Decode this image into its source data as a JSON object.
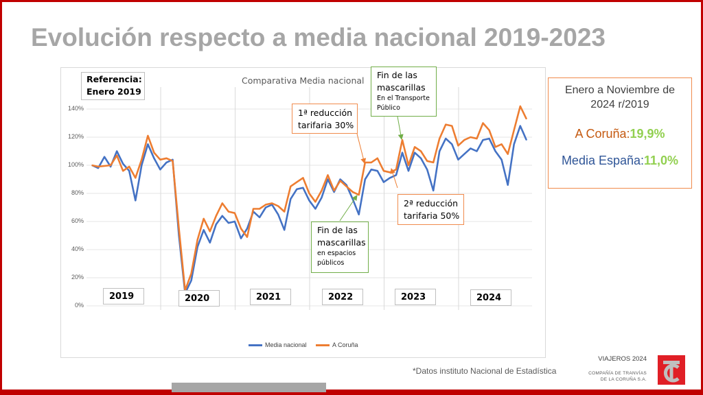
{
  "slide": {
    "title": "Evolución respecto a media nacional 2019-2023",
    "note": "*Datos instituto Nacional de Estadística",
    "footer": {
      "report": "VIAJEROS 2024",
      "company_line1": "COMPAÑÍA DE TRANVÍAS",
      "company_line2": "DE LA CORUÑA S.A.",
      "logo_text": "TC"
    }
  },
  "reference_box": {
    "line1": "Referencia:",
    "line2": "Enero 2019"
  },
  "summary": {
    "period": "Enero a Noviembre de 2024 r/2019",
    "coruna_label": "A Coruña:",
    "coruna_value": "19,9%",
    "spain_label": "Media España:",
    "spain_value": "11,0%"
  },
  "annotations": {
    "first_reduction": {
      "line1": "1ª reducción",
      "line2": "tarifaria 30%"
    },
    "second_reduction": {
      "line1": "2ª reducción",
      "line2": "tarifaria 50%"
    },
    "masks_public_spaces": {
      "line1": "Fin de las",
      "line2": "mascarillas",
      "line3": "en espacios",
      "line4": "públicos"
    },
    "masks_transport": {
      "line1": "Fin de las",
      "line2": "mascarillas",
      "line3": "En el Transporte",
      "line4": "Público"
    }
  },
  "colors": {
    "media_nacional": "#4472c4",
    "a_coruna": "#ed7d31",
    "highlight_value": "#92d050",
    "coruna_text": "#c55a11",
    "spain_text": "#2f5597"
  },
  "chart_data": {
    "type": "line",
    "title": "Comparativa Media nacional",
    "xlabel": "",
    "ylabel": "",
    "ylim": [
      0,
      140
    ],
    "yticks": [
      "0%",
      "20%",
      "40%",
      "60%",
      "80%",
      "100%",
      "120%",
      "140%"
    ],
    "year_labels": [
      "2019",
      "2020",
      "2021",
      "2022",
      "2023",
      "2024"
    ],
    "x_start": "Enero 2019",
    "x_end": "Noviembre 2024",
    "grid": true,
    "legend_position": "bottom",
    "series": [
      {
        "name": "Media nacional",
        "values": [
          100,
          98,
          106,
          99,
          110,
          101,
          96,
          75,
          100,
          115,
          105,
          97,
          102,
          104,
          50,
          9,
          18,
          42,
          54,
          45,
          58,
          64,
          59,
          60,
          48,
          55,
          67,
          63,
          70,
          72,
          65,
          54,
          76,
          83,
          84,
          75,
          69,
          77,
          90,
          81,
          90,
          86,
          76,
          65,
          90,
          97,
          96,
          88,
          91,
          93,
          109,
          96,
          109,
          105,
          97,
          82,
          110,
          119,
          115,
          104,
          108,
          112,
          110,
          118,
          119,
          110,
          104,
          86,
          115,
          128,
          118
        ]
      },
      {
        "name": "A Coruña",
        "values": [
          100,
          99,
          99.5,
          100,
          107,
          96,
          99,
          91,
          104,
          121,
          109,
          104,
          105,
          103,
          55,
          11,
          23,
          47,
          62,
          53,
          64,
          73,
          67,
          66,
          55,
          49,
          69,
          69,
          72,
          73,
          71,
          67,
          85,
          88,
          91,
          80,
          74,
          82,
          93,
          82,
          89,
          85,
          81,
          79,
          102,
          102,
          105,
          96,
          95,
          97,
          118,
          100,
          113,
          110,
          103,
          102,
          119,
          129,
          128,
          114,
          118,
          120,
          119,
          130,
          125,
          113,
          115,
          108,
          125,
          142,
          133
        ]
      }
    ]
  }
}
